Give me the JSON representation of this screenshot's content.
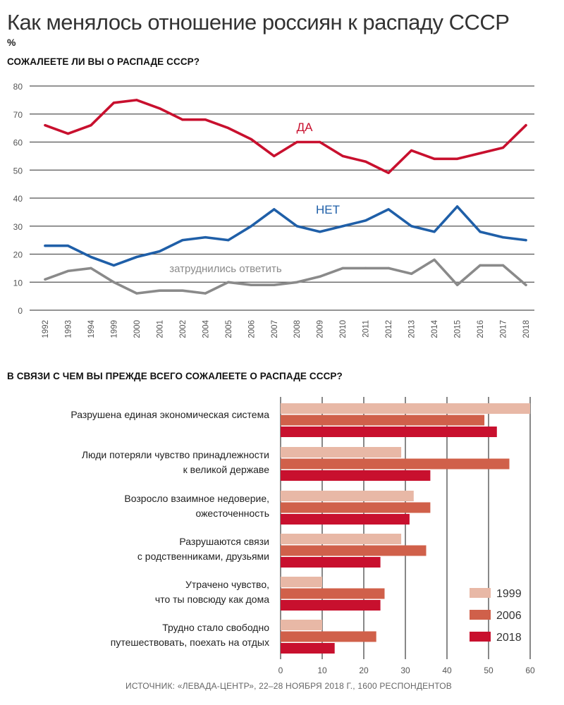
{
  "title": "Как менялось отношение россиян к распаду СССР",
  "unit": "%",
  "source": "ИСТОЧНИК: «ЛЕВАДА-ЦЕНТР», 22–28 НОЯБРЯ 2018 Г., 1600 РЕСПОНДЕНТОВ",
  "colors": {
    "da": "#c8102e",
    "net": "#1f5fa8",
    "hard": "#8a8a8a",
    "grid": "#555555",
    "bar_1999": "#e8b8a6",
    "bar_2006": "#d0604a",
    "bar_2018": "#c8102e"
  },
  "chart_data": [
    {
      "type": "line",
      "title": "СОЖАЛЕЕТЕ ЛИ ВЫ О РАСПАДЕ СССР?",
      "x": [
        "1992",
        "1993",
        "1994",
        "1999",
        "2000",
        "2001",
        "2002",
        "2004",
        "2005",
        "2006",
        "2007",
        "2008",
        "2009",
        "2010",
        "2011",
        "2012",
        "2013",
        "2014",
        "2015",
        "2016",
        "2017",
        "2018"
      ],
      "ylim": [
        0,
        80
      ],
      "yticks": [
        0,
        10,
        20,
        30,
        40,
        50,
        60,
        70,
        80
      ],
      "grid": true,
      "series": [
        {
          "name": "ДА",
          "color": "#c8102e",
          "values": [
            66,
            63,
            66,
            74,
            75,
            72,
            68,
            68,
            65,
            61,
            55,
            60,
            60,
            55,
            53,
            49,
            57,
            54,
            54,
            56,
            58,
            66
          ]
        },
        {
          "name": "НЕТ",
          "color": "#1f5fa8",
          "values": [
            23,
            23,
            19,
            16,
            19,
            21,
            25,
            26,
            25,
            30,
            36,
            30,
            28,
            30,
            32,
            36,
            30,
            28,
            37,
            28,
            26,
            25
          ]
        },
        {
          "name": "затруднились ответить",
          "color": "#8a8a8a",
          "values": [
            11,
            14,
            15,
            10,
            6,
            7,
            7,
            6,
            10,
            9,
            9,
            10,
            12,
            15,
            15,
            15,
            13,
            18,
            9,
            16,
            16,
            9
          ]
        }
      ]
    },
    {
      "type": "bar",
      "orientation": "horizontal",
      "title": "В СВЯЗИ С ЧЕМ ВЫ ПРЕЖДЕ ВСЕГО СОЖАЛЕЕТЕ О РАСПАДЕ СССР?",
      "categories": [
        [
          "Разрушена единая экономическая система"
        ],
        [
          "Люди потеряли чувство принадлежности",
          "к великой державе"
        ],
        [
          "Возросло взаимное недоверие,",
          "ожесточенность"
        ],
        [
          "Разрушаются связи",
          "с родственниками, друзьями"
        ],
        [
          "Утрачено чувство,",
          "что ты повсюду как дома"
        ],
        [
          "Трудно стало свободно",
          "путешествовать, поехать на отдых"
        ]
      ],
      "xlim": [
        0,
        60
      ],
      "xticks": [
        0,
        10,
        20,
        30,
        40,
        50,
        60
      ],
      "legend_position": "bottom-right",
      "series": [
        {
          "name": "1999",
          "color": "#e8b8a6",
          "values": [
            60,
            29,
            32,
            29,
            10,
            10
          ]
        },
        {
          "name": "2006",
          "color": "#d0604a",
          "values": [
            49,
            55,
            36,
            35,
            25,
            23
          ]
        },
        {
          "name": "2018",
          "color": "#c8102e",
          "values": [
            52,
            36,
            31,
            24,
            24,
            13
          ]
        }
      ]
    }
  ]
}
